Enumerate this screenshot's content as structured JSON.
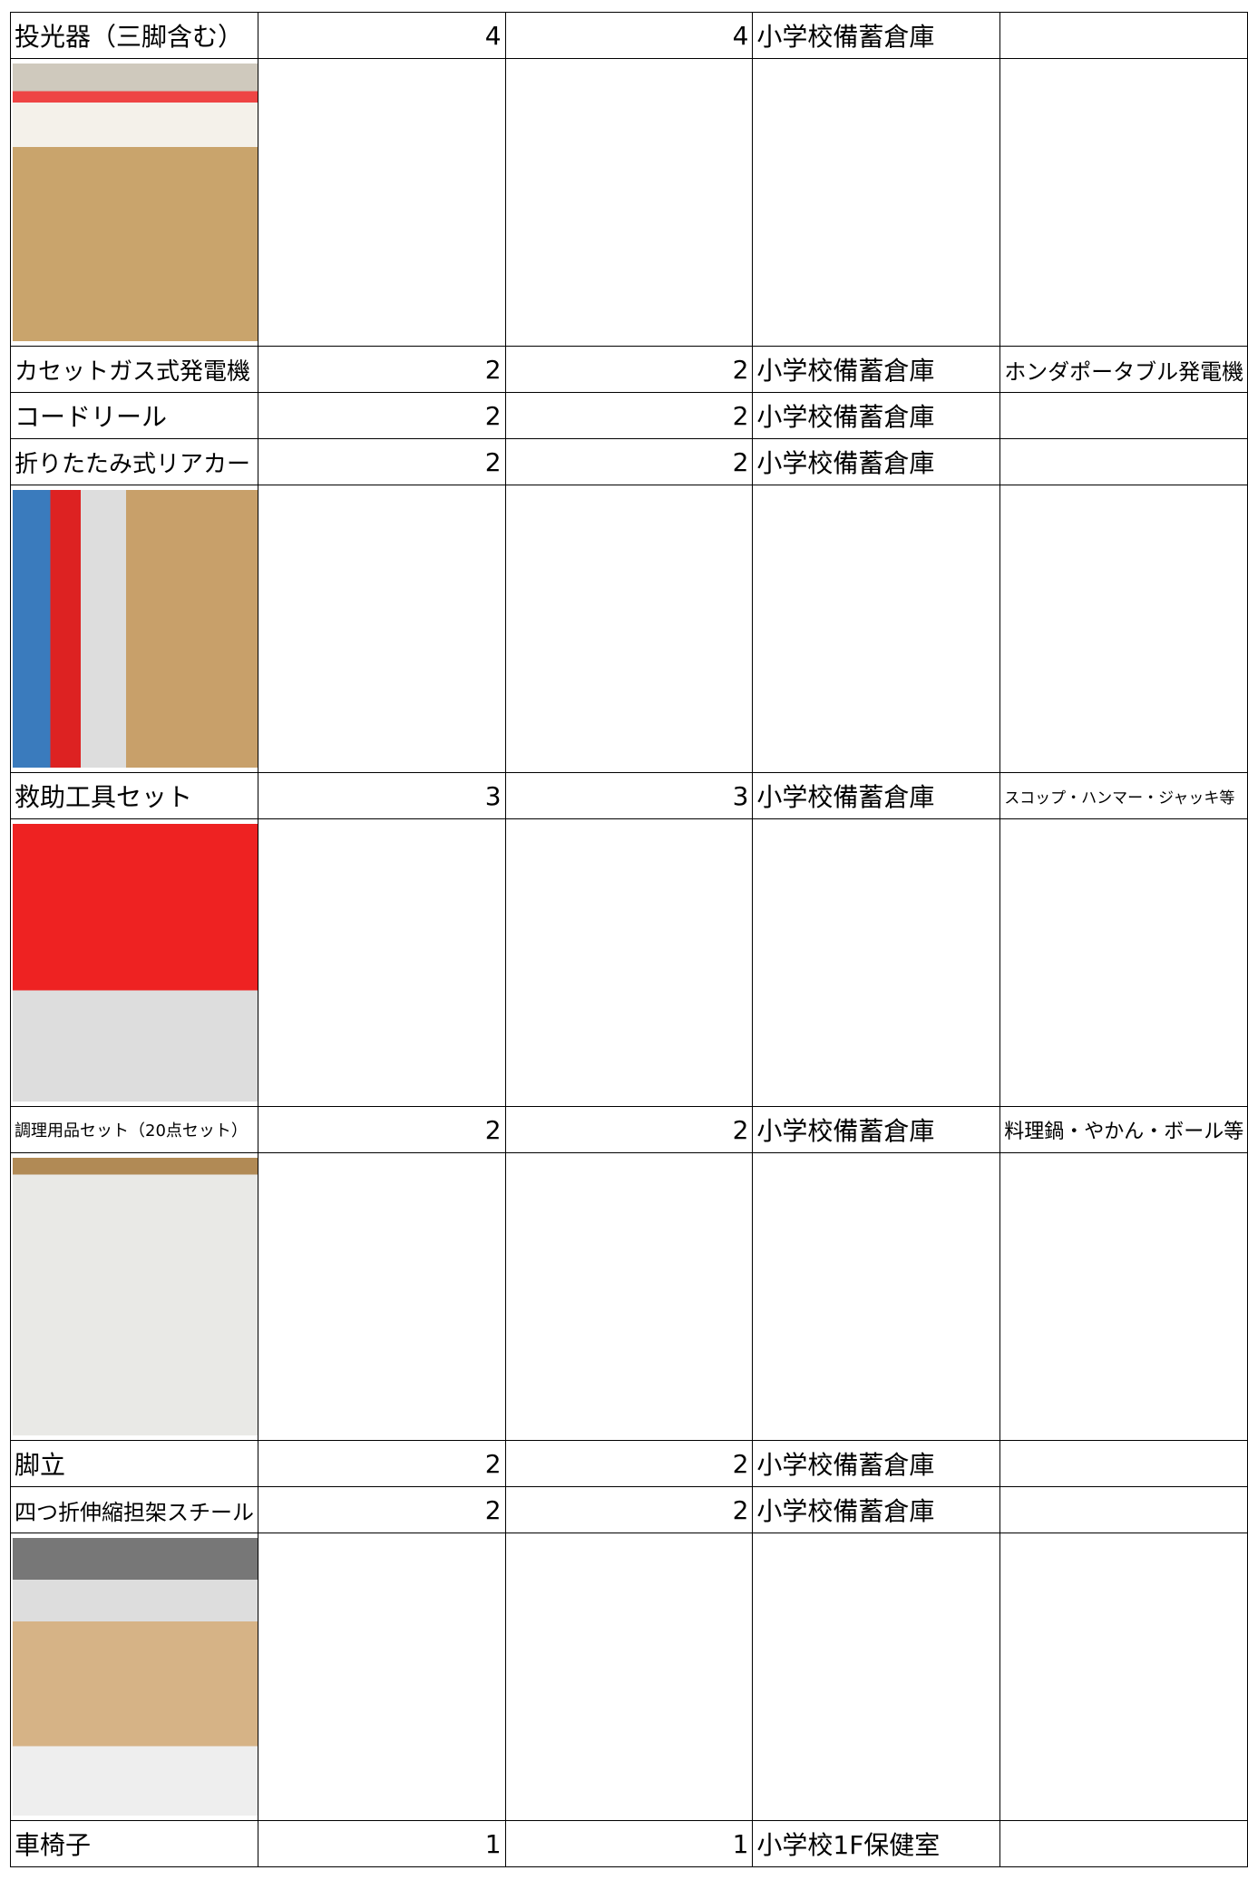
{
  "table": {
    "rows": [
      {
        "name": "投光器（三脚含む）",
        "qty1": 4,
        "qty2": 4,
        "location": "小学校備蓄倉庫"
      },
      {
        "name": "カセットガス式発電機",
        "qty1": 2,
        "qty2": 2,
        "location": "小学校備蓄倉庫",
        "note": "ホンダポータブル発電機"
      },
      {
        "name": "コードリール",
        "qty1": 2,
        "qty2": 2,
        "location": "小学校備蓄倉庫"
      },
      {
        "name": "折りたたみ式リアカー",
        "qty1": 2,
        "qty2": 2,
        "location": "小学校備蓄倉庫"
      },
      {
        "name": "救助工具セット",
        "qty1": 3,
        "qty2": 3,
        "location": "小学校備蓄倉庫",
        "note": "スコップ・ハンマー・ジャッキ等"
      },
      {
        "name": "調理用品セット（20点セット）",
        "qty1": 2,
        "qty2": 2,
        "location": "小学校備蓄倉庫",
        "note": "料理鍋・やかん・ボール等"
      },
      {
        "name": "脚立",
        "qty1": 2,
        "qty2": 2,
        "location": "小学校備蓄倉庫"
      },
      {
        "name": "四つ折伸縮担架スチール",
        "qty1": 2,
        "qty2": 2,
        "location": "小学校備蓄倉庫"
      },
      {
        "name": "車椅子",
        "qty1": 1,
        "qty2": 1,
        "location": "小学校1F保健室"
      }
    ]
  }
}
